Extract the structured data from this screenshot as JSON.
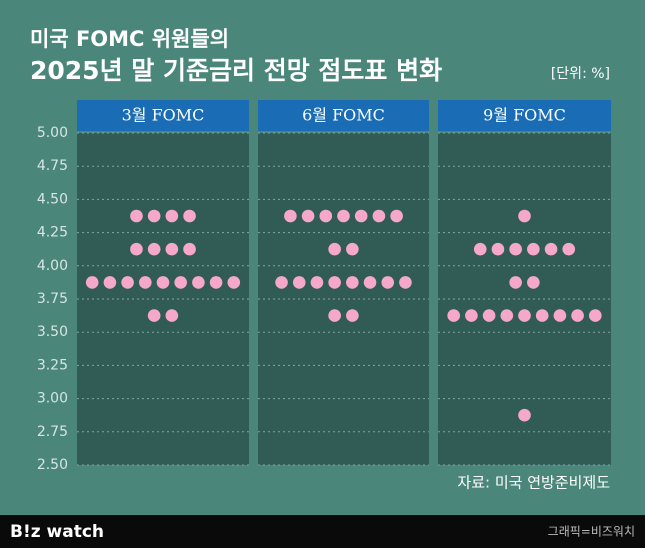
{
  "chart_data": {
    "type": "dot",
    "title": "미국 FOMC 위원들의",
    "subtitle": "2025년 말 기준금리 전망 점도표 변화",
    "unit": "[단위: %]",
    "source": "자료: 미국 연방준비제도",
    "brand": "B!z watch",
    "credit": "그래픽=비즈워치",
    "ylim": [
      2.5,
      5.0
    ],
    "yticks": [
      {
        "value": 2.5,
        "label": "2.50"
      },
      {
        "value": 2.75,
        "label": "2.75"
      },
      {
        "value": 3.0,
        "label": "3.00"
      },
      {
        "value": 3.25,
        "label": "3.25"
      },
      {
        "value": 3.5,
        "label": "3.50"
      },
      {
        "value": 3.75,
        "label": "3.75"
      },
      {
        "value": 4.0,
        "label": "4.00"
      },
      {
        "value": 4.25,
        "label": "4.25"
      },
      {
        "value": 4.5,
        "label": "4.50"
      },
      {
        "value": 4.75,
        "label": "4.75"
      },
      {
        "value": 5.0,
        "label": "5.00"
      }
    ],
    "grid": true,
    "series": [
      {
        "name": "3월 FOMC",
        "color": "#f5a8cc",
        "values": [
          4.375,
          4.375,
          4.375,
          4.375,
          4.125,
          4.125,
          4.125,
          4.125,
          3.875,
          3.875,
          3.875,
          3.875,
          3.875,
          3.875,
          3.875,
          3.875,
          3.875,
          3.625,
          3.625
        ]
      },
      {
        "name": "6월 FOMC",
        "color": "#f5a8cc",
        "values": [
          4.375,
          4.375,
          4.375,
          4.375,
          4.375,
          4.375,
          4.375,
          4.125,
          4.125,
          3.875,
          3.875,
          3.875,
          3.875,
          3.875,
          3.875,
          3.875,
          3.875,
          3.625,
          3.625
        ]
      },
      {
        "name": "9월 FOMC",
        "color": "#f5a8cc",
        "values": [
          4.375,
          4.125,
          4.125,
          4.125,
          4.125,
          4.125,
          4.125,
          3.875,
          3.875,
          3.625,
          3.625,
          3.625,
          3.625,
          3.625,
          3.625,
          3.625,
          3.625,
          3.625,
          2.875
        ]
      }
    ]
  }
}
